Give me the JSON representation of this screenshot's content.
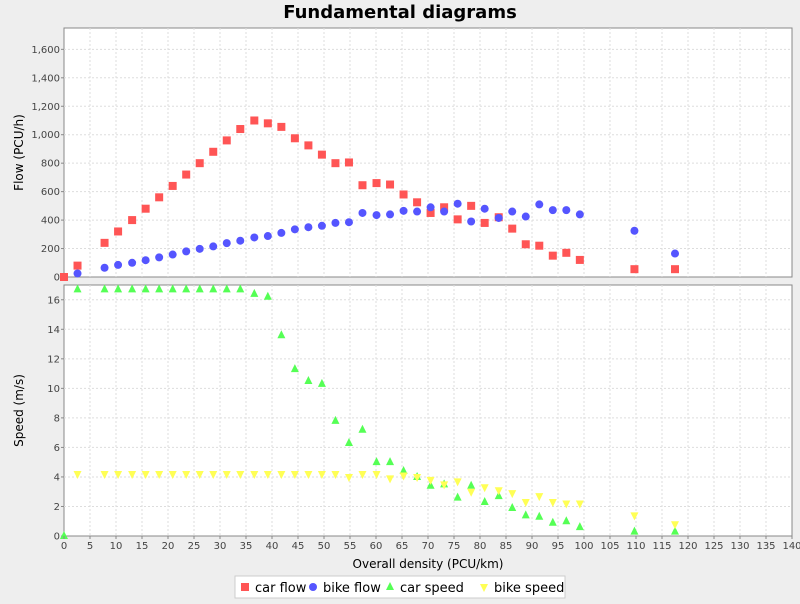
{
  "chart_data": {
    "type": "scatter",
    "title": "Fundamental diagrams",
    "xlabel": "Overall density (PCU/km)",
    "xlim": [
      0,
      140
    ],
    "x_ticks": [
      0,
      5,
      10,
      15,
      20,
      25,
      30,
      35,
      40,
      45,
      50,
      55,
      60,
      65,
      70,
      75,
      80,
      85,
      90,
      95,
      100,
      105,
      110,
      115,
      120,
      125,
      130,
      135,
      140
    ],
    "grid": true,
    "legend_position": "bottom",
    "panels": [
      {
        "ylabel": "Flow (PCU/h)",
        "ylim": [
          0,
          1750
        ],
        "y_ticks": [
          0,
          200,
          400,
          600,
          800,
          1000,
          1200,
          1400,
          1600
        ],
        "y_tick_labels": [
          "0",
          "200",
          "400",
          "600",
          "800",
          "1,000",
          "1,200",
          "1,400",
          "1,600"
        ],
        "series": [
          {
            "name": "car flow",
            "marker": "square",
            "color": "#ff5555",
            "points": [
              [
                0,
                0
              ],
              [
                2.6,
                80
              ],
              [
                7.8,
                240
              ],
              [
                10.4,
                320
              ],
              [
                13.1,
                400
              ],
              [
                15.7,
                480
              ],
              [
                18.3,
                560
              ],
              [
                20.9,
                640
              ],
              [
                23.5,
                720
              ],
              [
                26.1,
                800
              ],
              [
                28.7,
                880
              ],
              [
                31.3,
                960
              ],
              [
                33.9,
                1040
              ],
              [
                36.6,
                1100
              ],
              [
                39.2,
                1080
              ],
              [
                41.8,
                1055
              ],
              [
                44.4,
                975
              ],
              [
                47.0,
                925
              ],
              [
                49.6,
                860
              ],
              [
                52.2,
                800
              ],
              [
                54.8,
                805
              ],
              [
                57.4,
                645
              ],
              [
                60.1,
                660
              ],
              [
                62.7,
                650
              ],
              [
                65.3,
                580
              ],
              [
                67.9,
                525
              ],
              [
                70.5,
                450
              ],
              [
                73.1,
                490
              ],
              [
                75.7,
                405
              ],
              [
                78.3,
                500
              ],
              [
                80.9,
                380
              ],
              [
                83.6,
                420
              ],
              [
                86.2,
                340
              ],
              [
                88.8,
                230
              ],
              [
                91.4,
                220
              ],
              [
                94.0,
                150
              ],
              [
                96.6,
                170
              ],
              [
                99.2,
                120
              ],
              [
                109.7,
                55
              ],
              [
                117.5,
                55
              ]
            ]
          },
          {
            "name": "bike flow",
            "marker": "circle",
            "color": "#5555ff",
            "points": [
              [
                2.6,
                25
              ],
              [
                7.8,
                65
              ],
              [
                10.4,
                85
              ],
              [
                13.1,
                100
              ],
              [
                15.7,
                118
              ],
              [
                18.3,
                138
              ],
              [
                20.9,
                158
              ],
              [
                23.5,
                180
              ],
              [
                26.1,
                198
              ],
              [
                28.7,
                215
              ],
              [
                31.3,
                238
              ],
              [
                33.9,
                255
              ],
              [
                36.6,
                278
              ],
              [
                39.2,
                288
              ],
              [
                41.8,
                310
              ],
              [
                44.4,
                335
              ],
              [
                47.0,
                350
              ],
              [
                49.6,
                360
              ],
              [
                52.2,
                380
              ],
              [
                54.8,
                385
              ],
              [
                57.4,
                450
              ],
              [
                60.1,
                435
              ],
              [
                62.7,
                440
              ],
              [
                65.3,
                465
              ],
              [
                67.9,
                460
              ],
              [
                70.5,
                490
              ],
              [
                73.1,
                460
              ],
              [
                75.7,
                515
              ],
              [
                78.3,
                390
              ],
              [
                80.9,
                480
              ],
              [
                83.6,
                415
              ],
              [
                86.2,
                460
              ],
              [
                88.8,
                425
              ],
              [
                91.4,
                510
              ],
              [
                94.0,
                470
              ],
              [
                96.6,
                470
              ],
              [
                99.2,
                440
              ],
              [
                109.7,
                325
              ],
              [
                117.5,
                165
              ]
            ]
          }
        ]
      },
      {
        "ylabel": "Speed (m/s)",
        "ylim": [
          0,
          17
        ],
        "y_ticks": [
          0,
          2,
          4,
          6,
          8,
          10,
          12,
          14,
          16
        ],
        "y_tick_labels": [
          "0",
          "2",
          "4",
          "6",
          "8",
          "10",
          "12",
          "14",
          "16"
        ],
        "series": [
          {
            "name": "car speed",
            "marker": "triangle",
            "color": "#55ff55",
            "points": [
              [
                0,
                0
              ],
              [
                2.6,
                16.7
              ],
              [
                7.8,
                16.7
              ],
              [
                10.4,
                16.7
              ],
              [
                13.1,
                16.7
              ],
              [
                15.7,
                16.7
              ],
              [
                18.3,
                16.7
              ],
              [
                20.9,
                16.7
              ],
              [
                23.5,
                16.7
              ],
              [
                26.1,
                16.7
              ],
              [
                28.7,
                16.7
              ],
              [
                31.3,
                16.7
              ],
              [
                33.9,
                16.7
              ],
              [
                36.6,
                16.4
              ],
              [
                39.2,
                16.2
              ],
              [
                41.8,
                13.6
              ],
              [
                44.4,
                11.3
              ],
              [
                47.0,
                10.5
              ],
              [
                49.6,
                10.3
              ],
              [
                52.2,
                7.8
              ],
              [
                54.8,
                6.3
              ],
              [
                57.4,
                7.2
              ],
              [
                60.1,
                5.0
              ],
              [
                62.7,
                5.0
              ],
              [
                65.3,
                4.4
              ],
              [
                67.9,
                4.0
              ],
              [
                70.5,
                3.4
              ],
              [
                73.1,
                3.5
              ],
              [
                75.7,
                2.6
              ],
              [
                78.3,
                3.4
              ],
              [
                80.9,
                2.3
              ],
              [
                83.6,
                2.7
              ],
              [
                86.2,
                1.9
              ],
              [
                88.8,
                1.4
              ],
              [
                91.4,
                1.3
              ],
              [
                94.0,
                0.9
              ],
              [
                96.6,
                1.0
              ],
              [
                99.2,
                0.6
              ],
              [
                109.7,
                0.3
              ],
              [
                117.5,
                0.3
              ]
            ]
          },
          {
            "name": "bike speed",
            "marker": "triangle-down",
            "color": "#ffff55",
            "points": [
              [
                2.6,
                4.2
              ],
              [
                7.8,
                4.2
              ],
              [
                10.4,
                4.2
              ],
              [
                13.1,
                4.2
              ],
              [
                15.7,
                4.2
              ],
              [
                18.3,
                4.2
              ],
              [
                20.9,
                4.2
              ],
              [
                23.5,
                4.2
              ],
              [
                26.1,
                4.2
              ],
              [
                28.7,
                4.2
              ],
              [
                31.3,
                4.2
              ],
              [
                33.9,
                4.2
              ],
              [
                36.6,
                4.2
              ],
              [
                39.2,
                4.2
              ],
              [
                41.8,
                4.2
              ],
              [
                44.4,
                4.2
              ],
              [
                47.0,
                4.2
              ],
              [
                49.6,
                4.2
              ],
              [
                52.2,
                4.2
              ],
              [
                54.8,
                4.0
              ],
              [
                57.4,
                4.2
              ],
              [
                60.1,
                4.2
              ],
              [
                62.7,
                3.9
              ],
              [
                65.3,
                4.1
              ],
              [
                67.9,
                4.0
              ],
              [
                70.5,
                3.8
              ],
              [
                73.1,
                3.5
              ],
              [
                75.7,
                3.7
              ],
              [
                78.3,
                3.0
              ],
              [
                80.9,
                3.3
              ],
              [
                83.6,
                3.1
              ],
              [
                86.2,
                2.9
              ],
              [
                88.8,
                2.3
              ],
              [
                91.4,
                2.7
              ],
              [
                94.0,
                2.3
              ],
              [
                96.6,
                2.2
              ],
              [
                99.2,
                2.2
              ],
              [
                109.7,
                1.4
              ],
              [
                117.5,
                0.8
              ]
            ]
          }
        ]
      }
    ],
    "legend": [
      {
        "name": "car flow",
        "marker": "square",
        "color": "#ff5555"
      },
      {
        "name": "bike flow",
        "marker": "circle",
        "color": "#5555ff"
      },
      {
        "name": "car speed",
        "marker": "triangle",
        "color": "#55ff55"
      },
      {
        "name": "bike speed",
        "marker": "triangle-down",
        "color": "#ffff55"
      }
    ],
    "colors": {
      "plot_background": "#ffffff",
      "page_background": "#eeeeee",
      "grid": "#dddddd",
      "axis": "#888888",
      "text": "#000000"
    }
  }
}
